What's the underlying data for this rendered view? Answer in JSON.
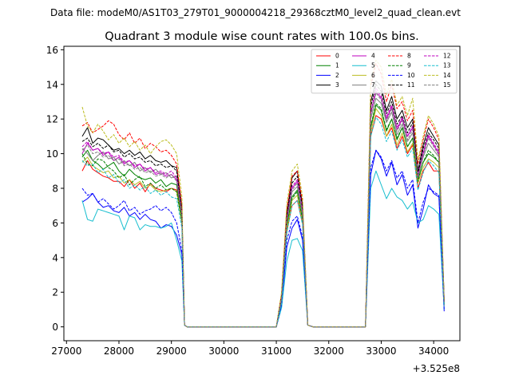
{
  "chart_data": {
    "type": "line",
    "suptitle": "Data file: modeM0/AS1T03_279T01_9000004218_29368cztM0_level2_quad_clean.evt",
    "title": "Quadrant 3 module wise count rates with 100.0s bins.",
    "xlabel": "",
    "ylabel": "",
    "x_offset_label": "+3.525e8",
    "xlim": [
      26950,
      34500
    ],
    "ylim": [
      -0.8,
      16.2
    ],
    "xticks": [
      27000,
      28000,
      29000,
      30000,
      31000,
      32000,
      33000,
      34000
    ],
    "yticks": [
      0,
      2,
      4,
      6,
      8,
      10,
      12,
      14,
      16
    ],
    "legend_position": "upper-right",
    "legend_columns": 4,
    "x": [
      27300,
      27400,
      27500,
      27600,
      27700,
      27800,
      27900,
      28000,
      28100,
      28200,
      28300,
      28400,
      28500,
      28600,
      28700,
      28800,
      28900,
      29000,
      29100,
      29200,
      29250,
      29300,
      29400,
      29500,
      29600,
      29700,
      29800,
      29900,
      30000,
      30100,
      30200,
      30300,
      30400,
      30500,
      30600,
      30700,
      30800,
      30900,
      31000,
      31100,
      31200,
      31300,
      31400,
      31500,
      31600,
      31700,
      31800,
      31900,
      32000,
      32100,
      32200,
      32300,
      32400,
      32500,
      32600,
      32700,
      32800,
      32900,
      33000,
      33100,
      33200,
      33300,
      33400,
      33500,
      33600,
      33700,
      33800,
      33900,
      34000,
      34100,
      34200
    ],
    "series": [
      {
        "name": "0",
        "color": "#ff0000",
        "dash": false,
        "values": [
          9.0,
          9.6,
          9.1,
          8.9,
          8.7,
          8.6,
          8.4,
          8.4,
          8.1,
          8.5,
          8.0,
          8.3,
          7.8,
          8.3,
          8.0,
          7.9,
          7.8,
          8.0,
          7.9,
          6.0,
          0.1,
          0,
          0,
          0,
          0,
          0,
          0,
          0,
          0,
          0,
          0,
          0,
          0,
          0,
          0,
          0,
          0,
          0,
          0,
          1.5,
          5.5,
          7.0,
          7.3,
          6.0,
          0.1,
          0,
          0,
          0,
          0,
          0,
          0,
          0,
          0,
          0,
          0,
          0,
          11.0,
          12.2,
          12.0,
          11.0,
          11.5,
          10.3,
          11.0,
          10.0,
          10.5,
          8.0,
          9.0,
          9.5,
          9.0,
          9.0,
          1.2
        ]
      },
      {
        "name": "1",
        "color": "#008000",
        "dash": false,
        "values": [
          9.8,
          10.2,
          9.6,
          9.4,
          9.1,
          9.3,
          9.5,
          9.0,
          8.7,
          9.1,
          8.8,
          8.6,
          8.5,
          8.6,
          8.3,
          8.5,
          8.1,
          8.3,
          8.2,
          6.2,
          0.1,
          0,
          0,
          0,
          0,
          0,
          0,
          0,
          0,
          0,
          0,
          0,
          0,
          0,
          0,
          0,
          0,
          0,
          0,
          1.6,
          5.8,
          7.5,
          7.9,
          6.3,
          0.1,
          0,
          0,
          0,
          0,
          0,
          0,
          0,
          0,
          0,
          0,
          0,
          11.5,
          12.8,
          12.5,
          11.3,
          12.0,
          10.8,
          11.5,
          10.4,
          10.9,
          8.5,
          9.5,
          10.0,
          9.8,
          9.5,
          1.3
        ]
      },
      {
        "name": "2",
        "color": "#0000ff",
        "dash": false,
        "values": [
          7.2,
          7.4,
          7.7,
          7.2,
          6.9,
          7.0,
          6.7,
          6.6,
          6.9,
          6.4,
          6.6,
          6.2,
          6.5,
          6.2,
          6.1,
          5.7,
          5.9,
          5.8,
          5.3,
          4.2,
          0.1,
          0,
          0,
          0,
          0,
          0,
          0,
          0,
          0,
          0,
          0,
          0,
          0,
          0,
          0,
          0,
          0,
          0,
          0,
          1.2,
          4.6,
          5.7,
          6.2,
          5.0,
          0.1,
          0,
          0,
          0,
          0,
          0,
          0,
          0,
          0,
          0,
          0,
          0,
          8.8,
          10.2,
          9.7,
          8.7,
          9.5,
          8.2,
          8.8,
          7.6,
          8.2,
          5.7,
          6.8,
          8.2,
          7.7,
          7.5,
          0.9
        ]
      },
      {
        "name": "3",
        "color": "#000000",
        "dash": false,
        "values": [
          11.0,
          11.5,
          10.6,
          10.9,
          10.8,
          10.5,
          10.2,
          10.3,
          10.0,
          10.2,
          9.9,
          10.1,
          9.7,
          9.9,
          9.6,
          9.5,
          9.6,
          9.3,
          9.2,
          6.8,
          0.1,
          0,
          0,
          0,
          0,
          0,
          0,
          0,
          0,
          0,
          0,
          0,
          0,
          0,
          0,
          0,
          0,
          0,
          0,
          1.8,
          6.5,
          8.6,
          9.0,
          7.0,
          0.1,
          0,
          0,
          0,
          0,
          0,
          0,
          0,
          0,
          0,
          0,
          0,
          13.0,
          14.2,
          13.9,
          12.5,
          13.3,
          12.0,
          12.5,
          11.5,
          12.0,
          9.0,
          10.5,
          11.5,
          11.0,
          10.5,
          1.5
        ]
      },
      {
        "name": "4",
        "color": "#bf00bf",
        "dash": false,
        "values": [
          10.0,
          10.6,
          10.2,
          10.3,
          9.9,
          10.1,
          9.6,
          9.8,
          9.4,
          9.6,
          9.2,
          9.4,
          9.0,
          9.2,
          8.8,
          8.9,
          8.7,
          8.8,
          8.5,
          6.4,
          0.1,
          0,
          0,
          0,
          0,
          0,
          0,
          0,
          0,
          0,
          0,
          0,
          0,
          0,
          0,
          0,
          0,
          0,
          0,
          1.7,
          6.2,
          8.0,
          8.4,
          6.6,
          0.1,
          0,
          0,
          0,
          0,
          0,
          0,
          0,
          0,
          0,
          0,
          0,
          12.3,
          13.6,
          13.2,
          12.0,
          12.7,
          11.4,
          12.0,
          11.0,
          11.5,
          8.6,
          10.0,
          11.0,
          10.5,
          10.0,
          1.4
        ]
      },
      {
        "name": "5",
        "color": "#17becf",
        "dash": false,
        "values": [
          7.3,
          6.2,
          6.1,
          6.8,
          6.7,
          6.6,
          6.5,
          6.4,
          5.6,
          6.4,
          6.3,
          5.6,
          5.9,
          5.8,
          5.8,
          5.7,
          5.8,
          6.0,
          5.0,
          3.8,
          0.1,
          0,
          0,
          0,
          0,
          0,
          0,
          0,
          0,
          0,
          0,
          0,
          0,
          0,
          0,
          0,
          0,
          0,
          0,
          1.1,
          3.8,
          5.0,
          5.1,
          4.4,
          0.1,
          0,
          0,
          0,
          0,
          0,
          0,
          0,
          0,
          0,
          0,
          0,
          8.0,
          9.0,
          8.2,
          7.4,
          8.0,
          7.5,
          7.3,
          6.8,
          7.2,
          6.0,
          6.2,
          7.0,
          6.8,
          6.5,
          1.0
        ]
      },
      {
        "name": "6",
        "color": "#bcbd22",
        "dash": false,
        "values": [
          9.5,
          9.8,
          9.3,
          9.1,
          8.9,
          9.0,
          8.6,
          8.7,
          8.3,
          8.5,
          8.2,
          8.4,
          8.0,
          8.2,
          7.9,
          7.8,
          7.9,
          8.0,
          7.8,
          6.0,
          0.1,
          0,
          0,
          0,
          0,
          0,
          0,
          0,
          0,
          0,
          0,
          0,
          0,
          0,
          0,
          0,
          0,
          0,
          0,
          1.5,
          5.6,
          7.3,
          7.6,
          6.1,
          0.1,
          0,
          0,
          0,
          0,
          0,
          0,
          0,
          0,
          0,
          0,
          0,
          11.2,
          12.6,
          12.2,
          11.0,
          11.7,
          10.5,
          11.2,
          10.1,
          10.6,
          8.3,
          9.2,
          9.7,
          9.5,
          9.2,
          1.3
        ]
      },
      {
        "name": "7",
        "color": "#7f7f7f",
        "dash": false,
        "values": [
          10.3,
          10.0,
          9.6,
          9.9,
          10.1,
          9.7,
          9.8,
          9.4,
          9.6,
          9.3,
          9.5,
          9.0,
          9.2,
          8.9,
          9.1,
          8.8,
          8.9,
          8.6,
          8.7,
          6.5,
          0.1,
          0,
          0,
          0,
          0,
          0,
          0,
          0,
          0,
          0,
          0,
          0,
          0,
          0,
          0,
          0,
          0,
          0,
          0,
          1.7,
          6.0,
          7.8,
          8.1,
          6.4,
          0.1,
          0,
          0,
          0,
          0,
          0,
          0,
          0,
          0,
          0,
          0,
          0,
          12.0,
          13.2,
          12.9,
          11.8,
          12.4,
          11.1,
          11.7,
          10.7,
          11.2,
          8.7,
          9.8,
          10.6,
          10.2,
          9.8,
          1.4
        ]
      },
      {
        "name": "8",
        "color": "#ff0000",
        "dash": true,
        "values": [
          11.6,
          11.8,
          11.2,
          11.4,
          11.6,
          11.9,
          11.7,
          11.1,
          10.8,
          11.2,
          10.6,
          10.9,
          10.3,
          10.6,
          10.4,
          10.1,
          10.2,
          9.9,
          9.4,
          7.0,
          0.1,
          0,
          0,
          0,
          0,
          0,
          0,
          0,
          0,
          0,
          0,
          0,
          0,
          0,
          0,
          0,
          0,
          0,
          0,
          1.9,
          6.8,
          8.7,
          9.0,
          7.2,
          0.1,
          0,
          0,
          0,
          0,
          0,
          0,
          0,
          0,
          0,
          0,
          0,
          13.9,
          15.2,
          14.6,
          13.0,
          14.0,
          12.6,
          13.0,
          11.9,
          12.5,
          9.4,
          10.8,
          12.0,
          11.5,
          10.8,
          1.6
        ]
      },
      {
        "name": "9",
        "color": "#008000",
        "dash": true,
        "values": [
          10.0,
          9.4,
          9.3,
          9.7,
          9.6,
          9.2,
          9.0,
          8.6,
          8.8,
          8.2,
          8.5,
          8.7,
          8.1,
          8.3,
          8.0,
          8.2,
          7.9,
          8.0,
          7.8,
          6.1,
          0.1,
          0,
          0,
          0,
          0,
          0,
          0,
          0,
          0,
          0,
          0,
          0,
          0,
          0,
          0,
          0,
          0,
          0,
          0,
          1.5,
          5.9,
          7.4,
          7.8,
          6.2,
          0.1,
          0,
          0,
          0,
          0,
          0,
          0,
          0,
          0,
          0,
          0,
          0,
          11.6,
          12.9,
          12.6,
          11.4,
          12.0,
          10.9,
          11.5,
          10.4,
          10.9,
          8.4,
          9.5,
          10.2,
          9.9,
          9.5,
          1.3
        ]
      },
      {
        "name": "10",
        "color": "#0000ff",
        "dash": true,
        "values": [
          8.0,
          7.6,
          7.7,
          7.2,
          7.4,
          7.1,
          6.8,
          7.0,
          7.3,
          6.7,
          6.9,
          6.5,
          6.7,
          6.8,
          7.0,
          6.7,
          6.9,
          6.6,
          6.0,
          4.4,
          0.1,
          0,
          0,
          0,
          0,
          0,
          0,
          0,
          0,
          0,
          0,
          0,
          0,
          0,
          0,
          0,
          0,
          0,
          0,
          1.3,
          5.0,
          6.1,
          6.4,
          5.2,
          0.1,
          0,
          0,
          0,
          0,
          0,
          0,
          0,
          0,
          0,
          0,
          0,
          9.2,
          10.2,
          9.8,
          9.0,
          9.6,
          8.6,
          9.0,
          8.0,
          8.5,
          6.0,
          7.2,
          8.0,
          7.8,
          7.6,
          1.0
        ]
      },
      {
        "name": "11",
        "color": "#000000",
        "dash": true,
        "values": [
          10.7,
          10.9,
          10.4,
          10.6,
          10.3,
          10.5,
          10.1,
          10.2,
          9.8,
          10.0,
          9.7,
          9.8,
          9.5,
          9.6,
          9.3,
          9.4,
          9.2,
          9.3,
          9.0,
          6.7,
          0.1,
          0,
          0,
          0,
          0,
          0,
          0,
          0,
          0,
          0,
          0,
          0,
          0,
          0,
          0,
          0,
          0,
          0,
          0,
          1.8,
          6.4,
          8.3,
          8.7,
          6.8,
          0.1,
          0,
          0,
          0,
          0,
          0,
          0,
          0,
          0,
          0,
          0,
          0,
          12.7,
          14.0,
          13.6,
          12.3,
          13.0,
          11.7,
          12.2,
          11.2,
          11.8,
          8.8,
          10.3,
          11.2,
          10.8,
          10.3,
          1.5
        ]
      },
      {
        "name": "12",
        "color": "#bf00bf",
        "dash": true,
        "values": [
          10.4,
          10.7,
          10.2,
          10.3,
          10.0,
          10.1,
          9.8,
          9.9,
          9.5,
          9.6,
          9.3,
          9.4,
          9.1,
          9.2,
          8.9,
          9.0,
          8.8,
          9.0,
          8.6,
          6.5,
          0.1,
          0,
          0,
          0,
          0,
          0,
          0,
          0,
          0,
          0,
          0,
          0,
          0,
          0,
          0,
          0,
          0,
          0,
          0,
          1.7,
          6.2,
          8.1,
          8.5,
          6.7,
          0.1,
          0,
          0,
          0,
          0,
          0,
          0,
          0,
          0,
          0,
          0,
          0,
          12.4,
          13.8,
          13.3,
          12.1,
          12.8,
          11.5,
          12.1,
          11.0,
          11.6,
          8.7,
          10.1,
          11.1,
          10.6,
          10.1,
          1.4
        ]
      },
      {
        "name": "13",
        "color": "#17becf",
        "dash": true,
        "values": [
          9.6,
          9.3,
          9.4,
          8.9,
          9.1,
          8.6,
          8.8,
          8.3,
          8.5,
          8.0,
          8.2,
          7.9,
          8.1,
          7.7,
          7.9,
          7.6,
          7.8,
          7.5,
          7.4,
          5.7,
          0.1,
          0,
          0,
          0,
          0,
          0,
          0,
          0,
          0,
          0,
          0,
          0,
          0,
          0,
          0,
          0,
          0,
          0,
          0,
          1.4,
          5.4,
          7.0,
          7.3,
          5.9,
          0.1,
          0,
          0,
          0,
          0,
          0,
          0,
          0,
          0,
          0,
          0,
          0,
          11.0,
          12.1,
          11.7,
          10.7,
          11.3,
          10.2,
          10.8,
          9.8,
          10.3,
          7.9,
          8.9,
          9.6,
          9.3,
          8.9,
          1.2
        ]
      },
      {
        "name": "14",
        "color": "#bcbd22",
        "dash": true,
        "values": [
          12.7,
          11.6,
          11.2,
          11.7,
          11.3,
          10.8,
          11.1,
          10.6,
          10.9,
          10.4,
          10.7,
          10.2,
          10.5,
          10.0,
          10.4,
          10.7,
          10.8,
          10.5,
          10.0,
          7.5,
          0.1,
          0,
          0,
          0,
          0,
          0,
          0,
          0,
          0,
          0,
          0,
          0,
          0,
          0,
          0,
          0,
          0,
          0,
          0,
          2.0,
          7.1,
          9.0,
          9.4,
          7.5,
          0.1,
          0,
          0,
          0,
          0,
          0,
          0,
          0,
          0,
          0,
          0,
          0,
          14.2,
          15.4,
          15.0,
          13.4,
          14.3,
          12.8,
          13.3,
          12.2,
          13.2,
          9.6,
          11.0,
          12.2,
          11.7,
          11.0,
          1.6
        ]
      },
      {
        "name": "15",
        "color": "#7f7f7f",
        "dash": true,
        "values": [
          10.2,
          10.5,
          10.0,
          10.1,
          9.8,
          9.9,
          9.6,
          9.7,
          9.3,
          9.4,
          9.1,
          9.2,
          8.9,
          9.0,
          8.7,
          8.8,
          8.6,
          8.8,
          8.4,
          6.4,
          0.1,
          0,
          0,
          0,
          0,
          0,
          0,
          0,
          0,
          0,
          0,
          0,
          0,
          0,
          0,
          0,
          0,
          0,
          0,
          1.6,
          6.1,
          7.9,
          8.3,
          6.6,
          0.1,
          0,
          0,
          0,
          0,
          0,
          0,
          0,
          0,
          0,
          0,
          0,
          12.2,
          13.5,
          13.1,
          11.9,
          12.6,
          11.3,
          11.9,
          10.8,
          11.4,
          8.6,
          9.9,
          10.9,
          10.4,
          9.9,
          1.4
        ]
      }
    ]
  }
}
